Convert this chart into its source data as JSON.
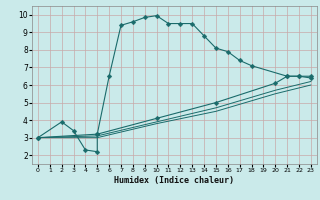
{
  "xlabel": "Humidex (Indice chaleur)",
  "bg_color": "#caeaea",
  "grid_color": "#c8a8a8",
  "line_color": "#1a6b6b",
  "xlim": [
    -0.5,
    23.5
  ],
  "ylim": [
    1.5,
    10.5
  ],
  "xticks": [
    0,
    1,
    2,
    3,
    4,
    5,
    6,
    7,
    8,
    9,
    10,
    11,
    12,
    13,
    14,
    15,
    16,
    17,
    18,
    19,
    20,
    21,
    22,
    23
  ],
  "yticks": [
    2,
    3,
    4,
    5,
    6,
    7,
    8,
    9,
    10
  ],
  "curve1_x": [
    0,
    2,
    3,
    4,
    5,
    5,
    6,
    7,
    8,
    9,
    10,
    11,
    12,
    13,
    14,
    15,
    16,
    17,
    18,
    21,
    22,
    23
  ],
  "curve1_y": [
    3.0,
    3.9,
    3.4,
    2.3,
    2.2,
    3.2,
    6.5,
    9.4,
    9.6,
    9.85,
    9.95,
    9.5,
    9.5,
    9.5,
    8.8,
    8.1,
    7.9,
    7.4,
    7.1,
    6.5,
    6.5,
    6.4
  ],
  "curve2_x": [
    0,
    5,
    10,
    15,
    20,
    21,
    22,
    23
  ],
  "curve2_y": [
    3.0,
    3.2,
    4.1,
    5.0,
    6.1,
    6.5,
    6.5,
    6.5
  ],
  "curve3_x": [
    0,
    5,
    10,
    15,
    20,
    23
  ],
  "curve3_y": [
    3.0,
    3.1,
    3.9,
    4.7,
    5.7,
    6.2
  ],
  "curve4_x": [
    0,
    5,
    10,
    15,
    20,
    23
  ],
  "curve4_y": [
    3.0,
    3.0,
    3.8,
    4.5,
    5.5,
    6.0
  ],
  "markersize": 2.5
}
